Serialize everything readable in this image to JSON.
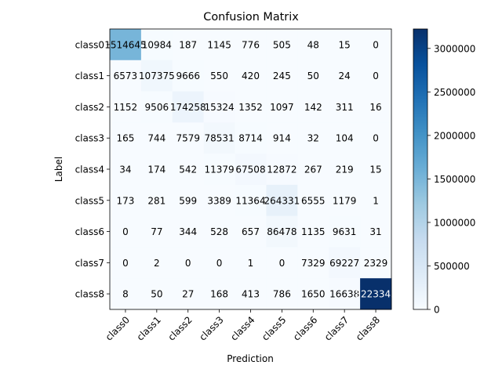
{
  "chart_data": {
    "type": "heatmap",
    "title": "Confusion Matrix",
    "xlabel": "Prediction",
    "ylabel": "Label",
    "x_categories": [
      "class0",
      "class1",
      "class2",
      "class3",
      "class4",
      "class5",
      "class6",
      "class7",
      "class8"
    ],
    "y_categories": [
      "class0",
      "class1",
      "class2",
      "class3",
      "class4",
      "class5",
      "class6",
      "class7",
      "class8"
    ],
    "values": [
      [
        1514645,
        10984,
        187,
        1145,
        776,
        505,
        48,
        15,
        0
      ],
      [
        6573,
        107375,
        9666,
        550,
        420,
        245,
        50,
        24,
        0
      ],
      [
        1152,
        9506,
        174258,
        15324,
        1352,
        1097,
        142,
        311,
        16
      ],
      [
        165,
        744,
        7579,
        78531,
        8714,
        914,
        32,
        104,
        0
      ],
      [
        34,
        174,
        542,
        11379,
        67508,
        12872,
        267,
        219,
        15
      ],
      [
        173,
        281,
        599,
        3389,
        11364,
        264331,
        6555,
        1179,
        1
      ],
      [
        0,
        77,
        344,
        528,
        657,
        86478,
        1135,
        9631,
        31
      ],
      [
        0,
        2,
        0,
        0,
        1,
        0,
        7329,
        69227,
        2329
      ],
      [
        8,
        50,
        27,
        168,
        413,
        786,
        1650,
        16638,
        3223343
      ]
    ],
    "colorbar": {
      "colormap": "Blues",
      "range": [
        0,
        3223343
      ],
      "ticks": [
        0,
        500000,
        1000000,
        1500000,
        2000000,
        2500000,
        3000000
      ]
    }
  }
}
